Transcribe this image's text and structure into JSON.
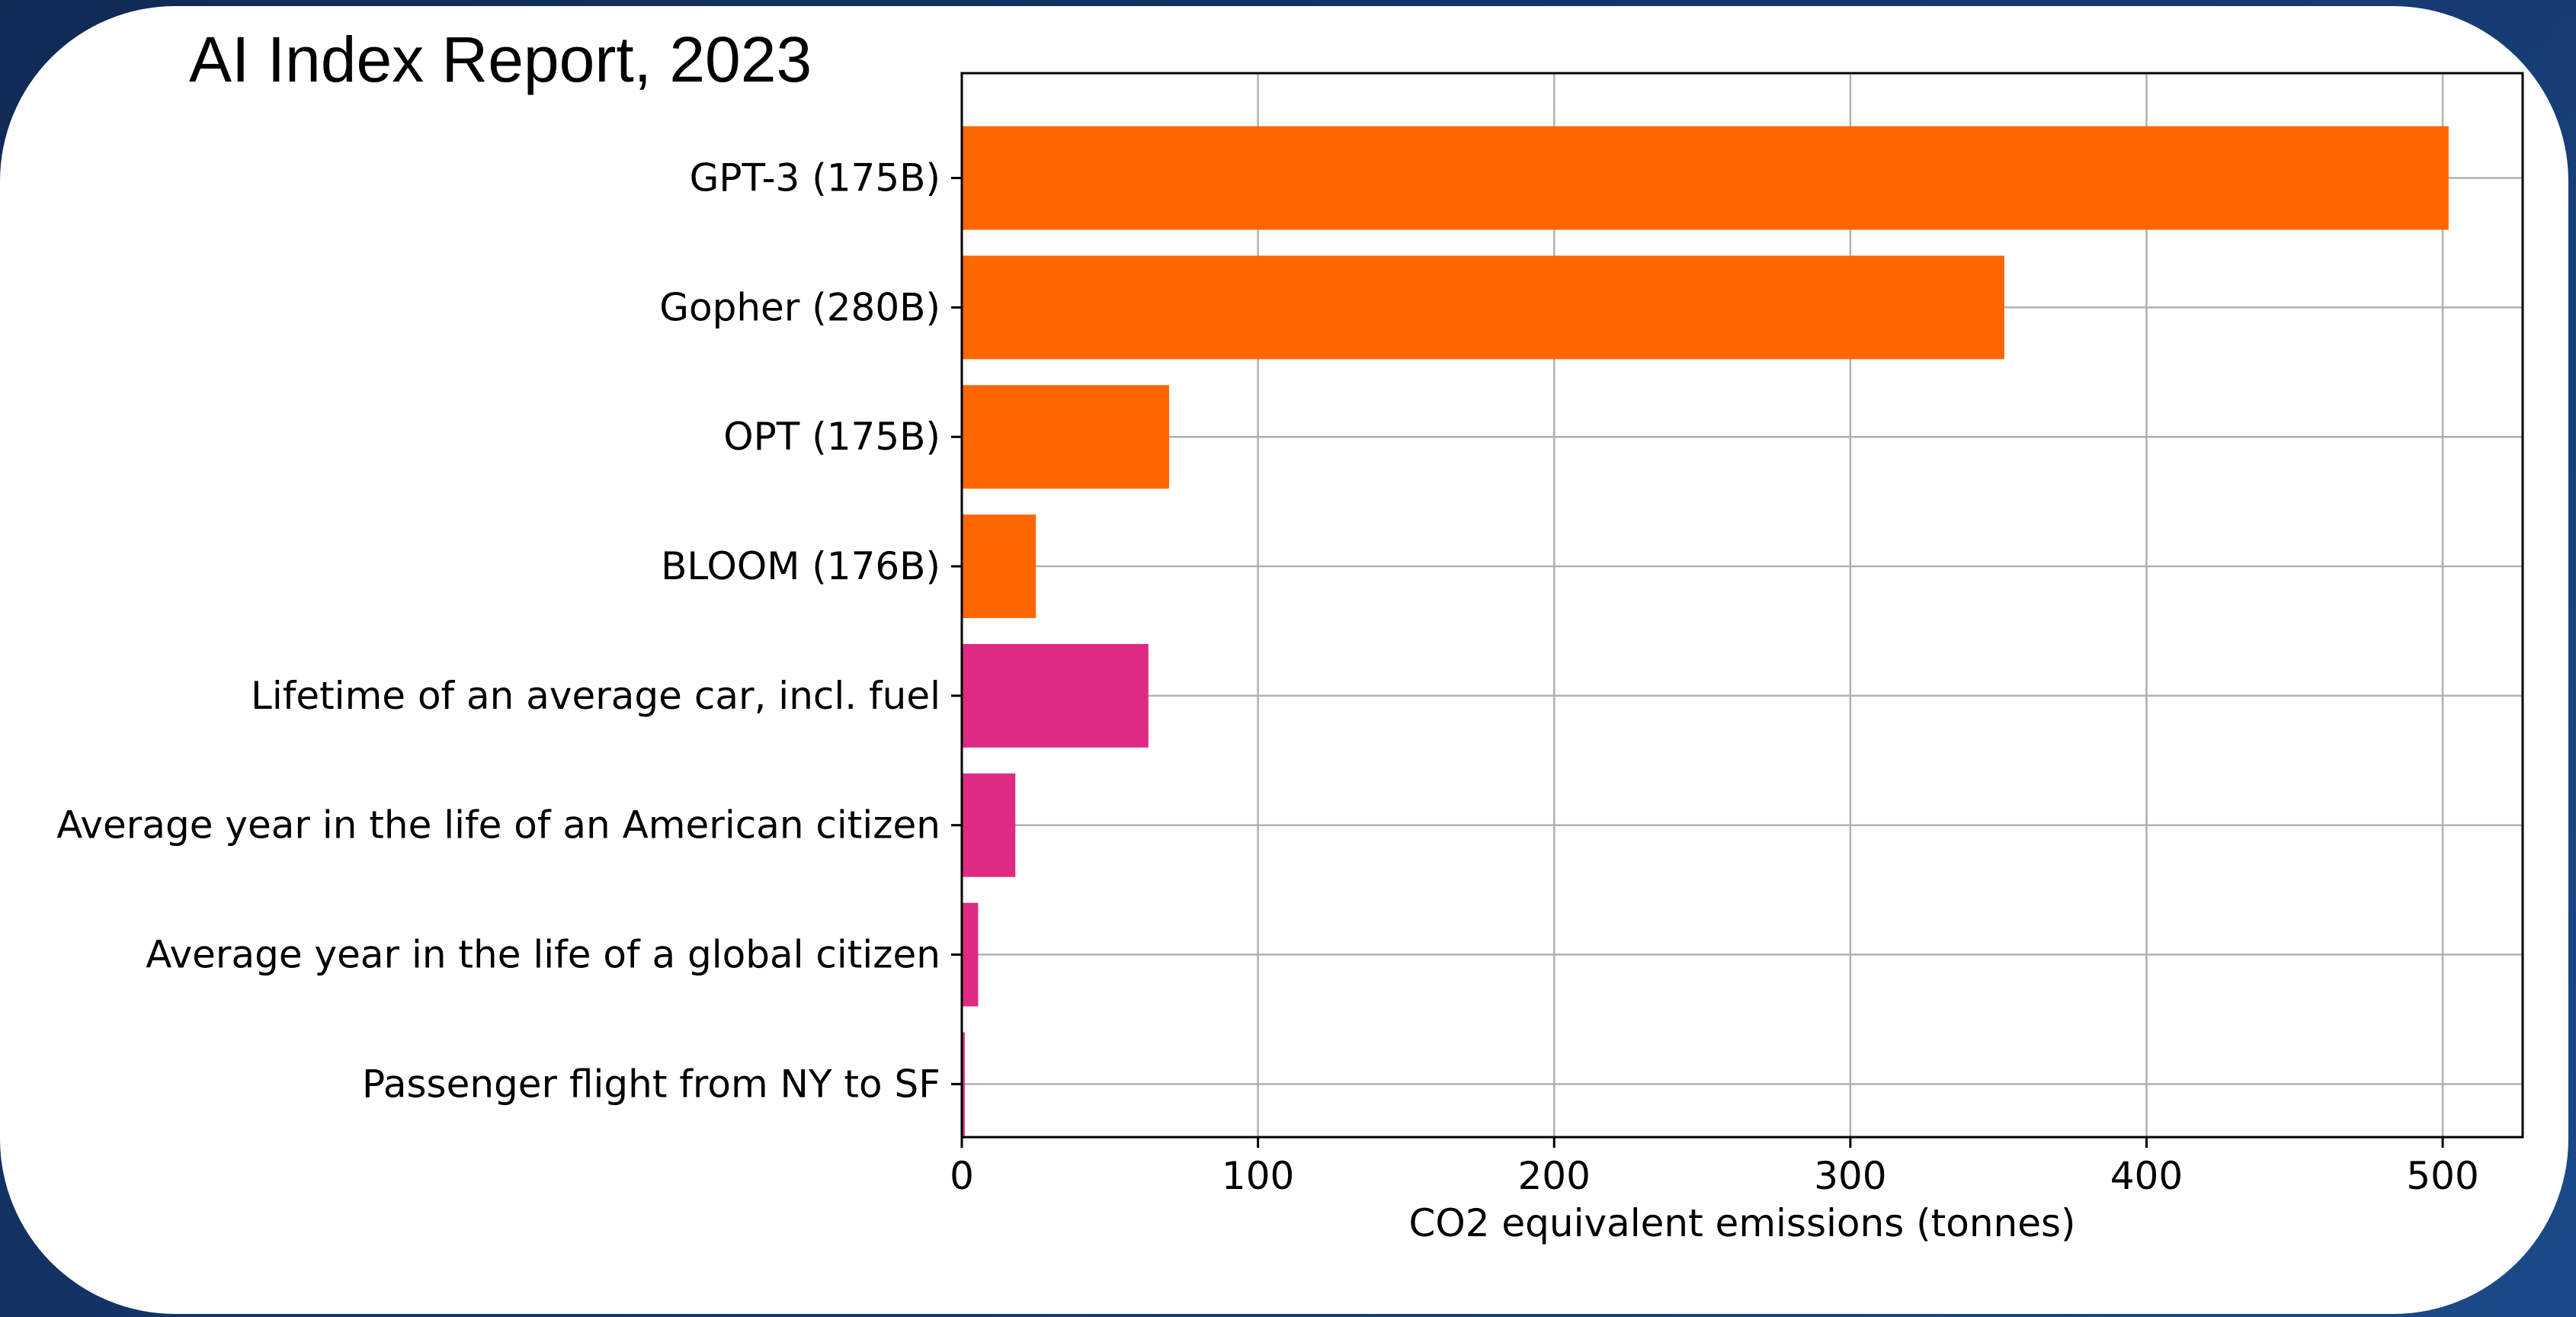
{
  "header": {
    "title": "AI Index Report, 2023"
  },
  "colors": {
    "model": "#ff6600",
    "reference": "#de2a82"
  },
  "chart_data": {
    "type": "bar",
    "orientation": "horizontal",
    "title": "",
    "xlabel": "CO2 equivalent emissions (tonnes)",
    "ylabel": "",
    "xlim": [
      0,
      527
    ],
    "xticks": [
      0,
      100,
      200,
      300,
      400,
      500
    ],
    "grid": true,
    "categories": [
      "GPT-3 (175B)",
      "Gopher (280B)",
      "OPT (175B)",
      "BLOOM (176B)",
      "Lifetime of an average car, incl. fuel",
      "Average year in the life of an American citizen",
      "Average year in the life of a global citizen",
      "Passenger flight from NY to SF"
    ],
    "values": [
      502,
      352,
      70,
      25,
      63,
      18.08,
      5.51,
      0.99
    ],
    "bar_colors": [
      "#ff6600",
      "#ff6600",
      "#ff6600",
      "#ff6600",
      "#de2a82",
      "#de2a82",
      "#de2a82",
      "#de2a82"
    ]
  }
}
